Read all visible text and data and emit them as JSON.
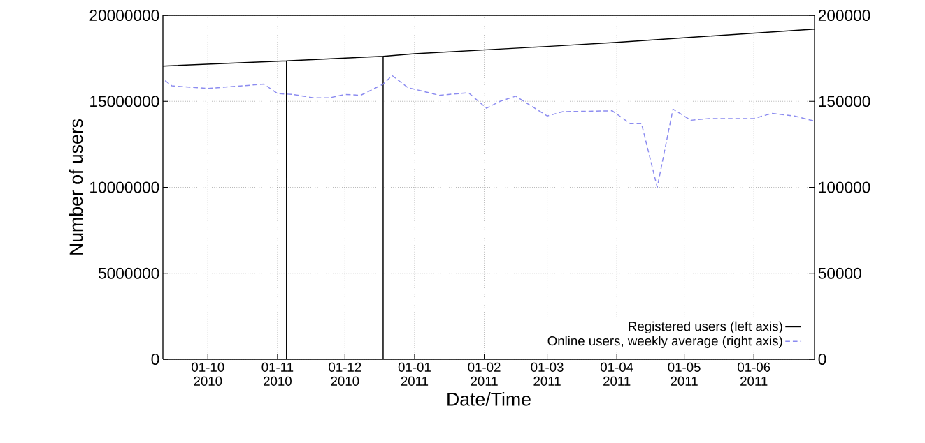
{
  "chart_data": {
    "type": "line",
    "xlabel": "Date/Time",
    "ylabel": "Number of users",
    "xlim": [
      "2010-09-11",
      "2011-06-28"
    ],
    "xticks": [
      {
        "value": "2010-10-01",
        "label": "01-10 2010"
      },
      {
        "value": "2010-11-01",
        "label": "01-11 2010"
      },
      {
        "value": "2010-12-01",
        "label": "01-12 2010"
      },
      {
        "value": "2011-01-01",
        "label": "01-01 2011"
      },
      {
        "value": "2011-02-01",
        "label": "01-02 2011"
      },
      {
        "value": "2011-03-01",
        "label": "01-03 2011"
      },
      {
        "value": "2011-04-01",
        "label": "01-04 2011"
      },
      {
        "value": "2011-05-01",
        "label": "01-05 2011"
      },
      {
        "value": "2011-06-01",
        "label": "01-06 2011"
      }
    ],
    "ylim": [
      0,
      20000000
    ],
    "yticks": [
      0,
      5000000,
      10000000,
      15000000,
      20000000
    ],
    "y2lim": [
      0,
      200000
    ],
    "y2ticks": [
      0,
      50000,
      100000,
      150000,
      200000
    ],
    "grid": true,
    "legend": "bottom right",
    "series": [
      {
        "name": "Registered users (left axis)",
        "color": "#000000",
        "line_style": "solid",
        "axis": "y",
        "x": [
          "2010-09-11",
          "2010-11-05",
          "2010-11-05",
          "2010-11-05",
          "2010-12-18",
          "2010-12-18",
          "2010-12-18",
          "2011-01-01",
          "2011-03-01",
          "2011-04-01",
          "2011-06-28"
        ],
        "values": [
          17050000,
          17350000,
          0,
          17350000,
          17620000,
          0,
          17620000,
          17770000,
          18190000,
          18430000,
          19200000
        ]
      },
      {
        "name": "Online users, weekly average (right axis)",
        "color": "#8c8cf0",
        "line_style": "dashed",
        "axis": "y2",
        "x": [
          "2010-09-12",
          "2010-09-15",
          "2010-10-01",
          "2010-10-26",
          "2010-11-01",
          "2010-11-08",
          "2010-11-17",
          "2010-11-24",
          "2010-12-01",
          "2010-12-08",
          "2010-12-18",
          "2010-12-22",
          "2010-12-29",
          "2011-01-12",
          "2011-01-25",
          "2011-02-02",
          "2011-02-08",
          "2011-02-15",
          "2011-03-01",
          "2011-03-08",
          "2011-03-30",
          "2011-04-07",
          "2011-04-12",
          "2011-04-19",
          "2011-04-26",
          "2011-05-04",
          "2011-05-12",
          "2011-06-01",
          "2011-06-09",
          "2011-06-19",
          "2011-06-28"
        ],
        "values": [
          162000,
          159000,
          157500,
          160000,
          154500,
          154000,
          152000,
          152000,
          154000,
          153500,
          160000,
          165000,
          158000,
          153500,
          155000,
          146000,
          150000,
          153000,
          141500,
          144000,
          144500,
          137000,
          137000,
          100000,
          145500,
          139000,
          140000,
          140000,
          143000,
          141500,
          138500
        ]
      }
    ]
  }
}
